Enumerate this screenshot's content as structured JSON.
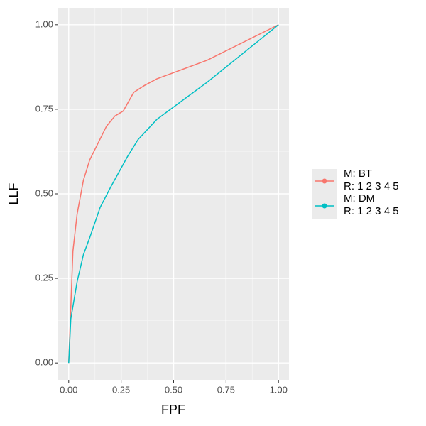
{
  "chart_data": {
    "type": "line",
    "x_label": "FPF",
    "y_label": "LLF",
    "xlim": [
      -0.05,
      1.05
    ],
    "ylim": [
      -0.05,
      1.05
    ],
    "xticks": [
      {
        "value": 0,
        "label": "0.00"
      },
      {
        "value": 0.25,
        "label": "0.25"
      },
      {
        "value": 0.5,
        "label": "0.50"
      },
      {
        "value": 0.75,
        "label": "0.75"
      },
      {
        "value": 1,
        "label": "1.00"
      }
    ],
    "yticks": [
      {
        "value": 0,
        "label": "0.00"
      },
      {
        "value": 0.25,
        "label": "0.25"
      },
      {
        "value": 0.5,
        "label": "0.50"
      },
      {
        "value": 0.75,
        "label": "0.75"
      },
      {
        "value": 1,
        "label": "1.00"
      }
    ],
    "grid": true,
    "legend_position": "right",
    "series": [
      {
        "name": "M: BT\nR: 1 2 3 4 5",
        "color": "#F8766D",
        "x": [
          0,
          0.02,
          0.04,
          0.07,
          0.1,
          0.14,
          0.18,
          0.22,
          0.26,
          0.31,
          0.36,
          0.42,
          0.66,
          1
        ],
        "values": [
          0,
          0.33,
          0.44,
          0.54,
          0.6,
          0.65,
          0.7,
          0.73,
          0.745,
          0.8,
          0.82,
          0.84,
          0.895,
          1
        ]
      },
      {
        "name": "M: DM\nR: 1 2 3 4 5",
        "color": "#00BFC4",
        "x": [
          0,
          0.01,
          0.04,
          0.07,
          0.1,
          0.15,
          0.2,
          0.28,
          0.33,
          0.42,
          0.66,
          1
        ],
        "values": [
          0,
          0.13,
          0.24,
          0.32,
          0.37,
          0.46,
          0.52,
          0.61,
          0.66,
          0.72,
          0.83,
          1
        ]
      }
    ]
  }
}
